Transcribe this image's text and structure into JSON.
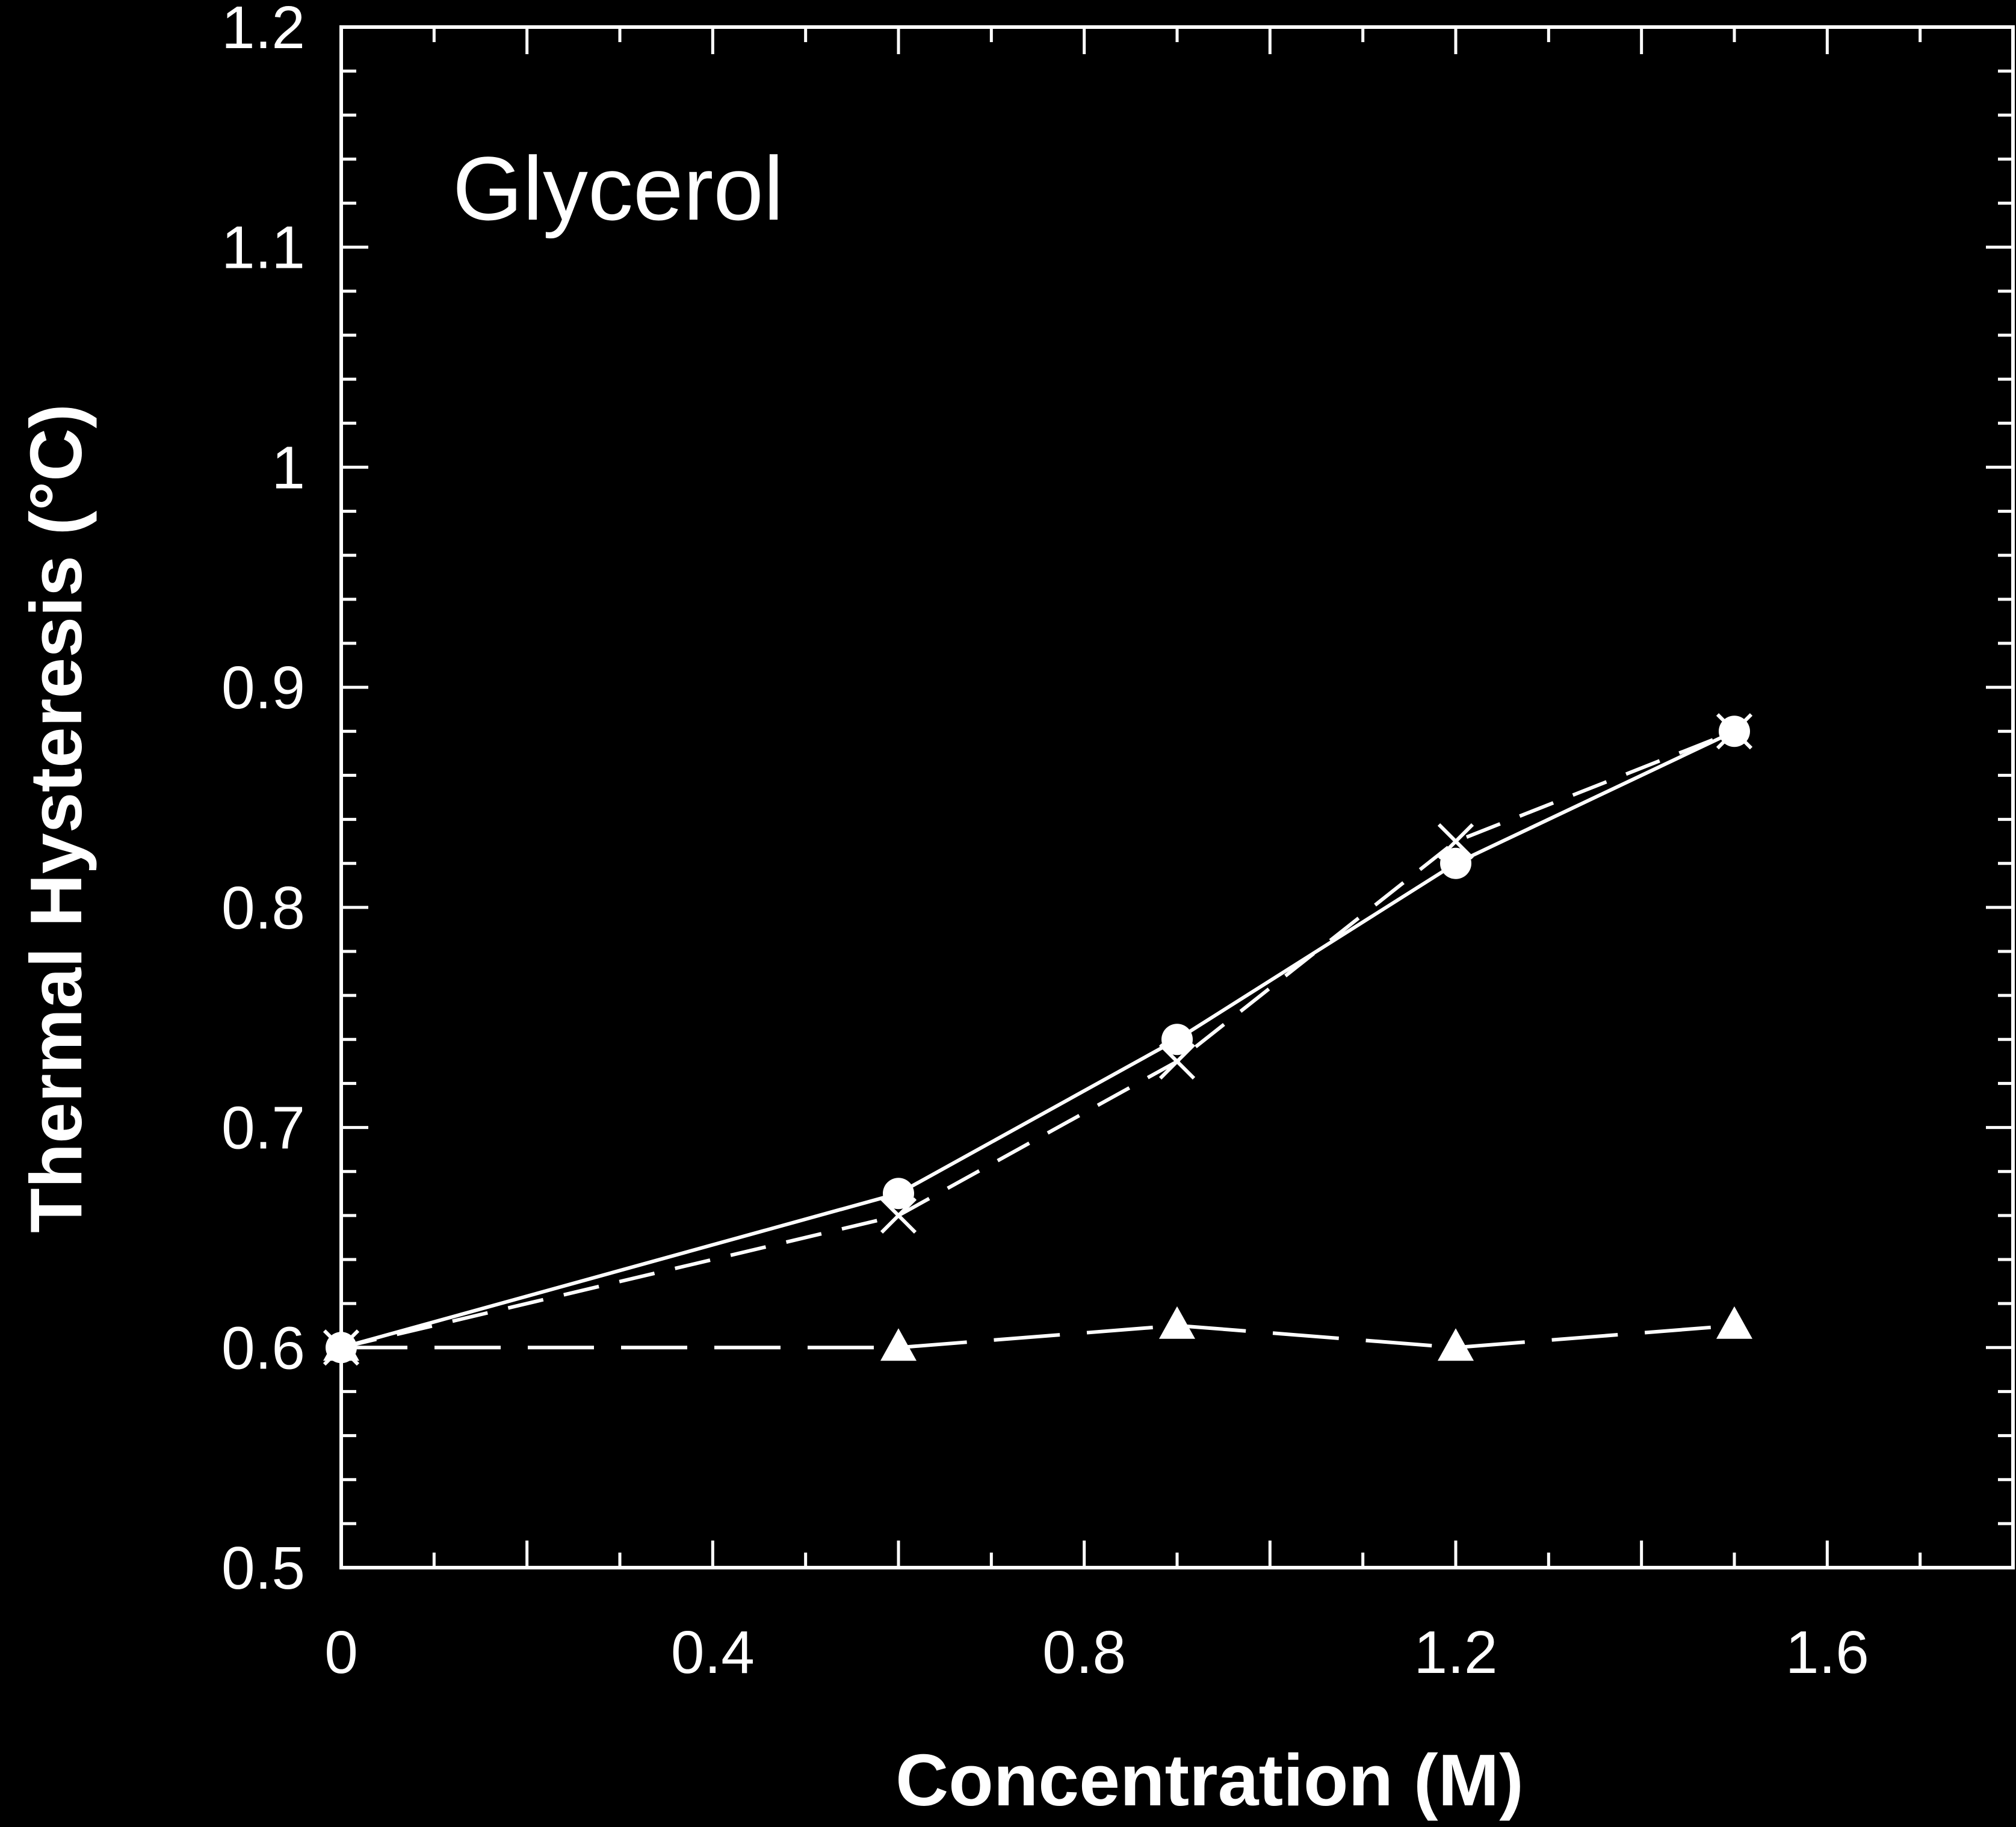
{
  "chart_data": {
    "type": "line",
    "xlabel": "Concentration (M)",
    "ylabel": "Thermal Hysteresis (°C)",
    "xlim": [
      0,
      1.8
    ],
    "ylim": [
      0.5,
      1.2
    ],
    "x_ticks": [
      0,
      0.4,
      0.8,
      1.2,
      1.6
    ],
    "x_tick_labels": [
      "0",
      "0.4",
      "0.8",
      "1.2",
      "1.6"
    ],
    "y_ticks": [
      0.5,
      0.6,
      0.7,
      0.8,
      0.9,
      1.0,
      1.1,
      1.2
    ],
    "y_tick_labels": [
      "0.5",
      "0.6",
      "0.7",
      "0.8",
      "0.9",
      "1",
      "1.1",
      "1.2"
    ],
    "annotation": "Glycerol",
    "background": "#000000",
    "foreground": "#ffffff",
    "grid": false,
    "series": [
      {
        "marker": "circle",
        "line": "solid",
        "x": [
          0,
          0.6,
          0.9,
          1.2,
          1.5
        ],
        "y": [
          0.6,
          0.67,
          0.74,
          0.82,
          0.88
        ]
      },
      {
        "marker": "x",
        "line": "dashed",
        "x": [
          0,
          0.6,
          0.9,
          1.2,
          1.5
        ],
        "y": [
          0.6,
          0.66,
          0.73,
          0.83,
          0.88
        ]
      },
      {
        "marker": "triangle",
        "line": "long-dashed",
        "x": [
          0,
          0.6,
          0.9,
          1.2,
          1.5
        ],
        "y": [
          0.6,
          0.6,
          0.61,
          0.6,
          0.61
        ]
      }
    ]
  }
}
